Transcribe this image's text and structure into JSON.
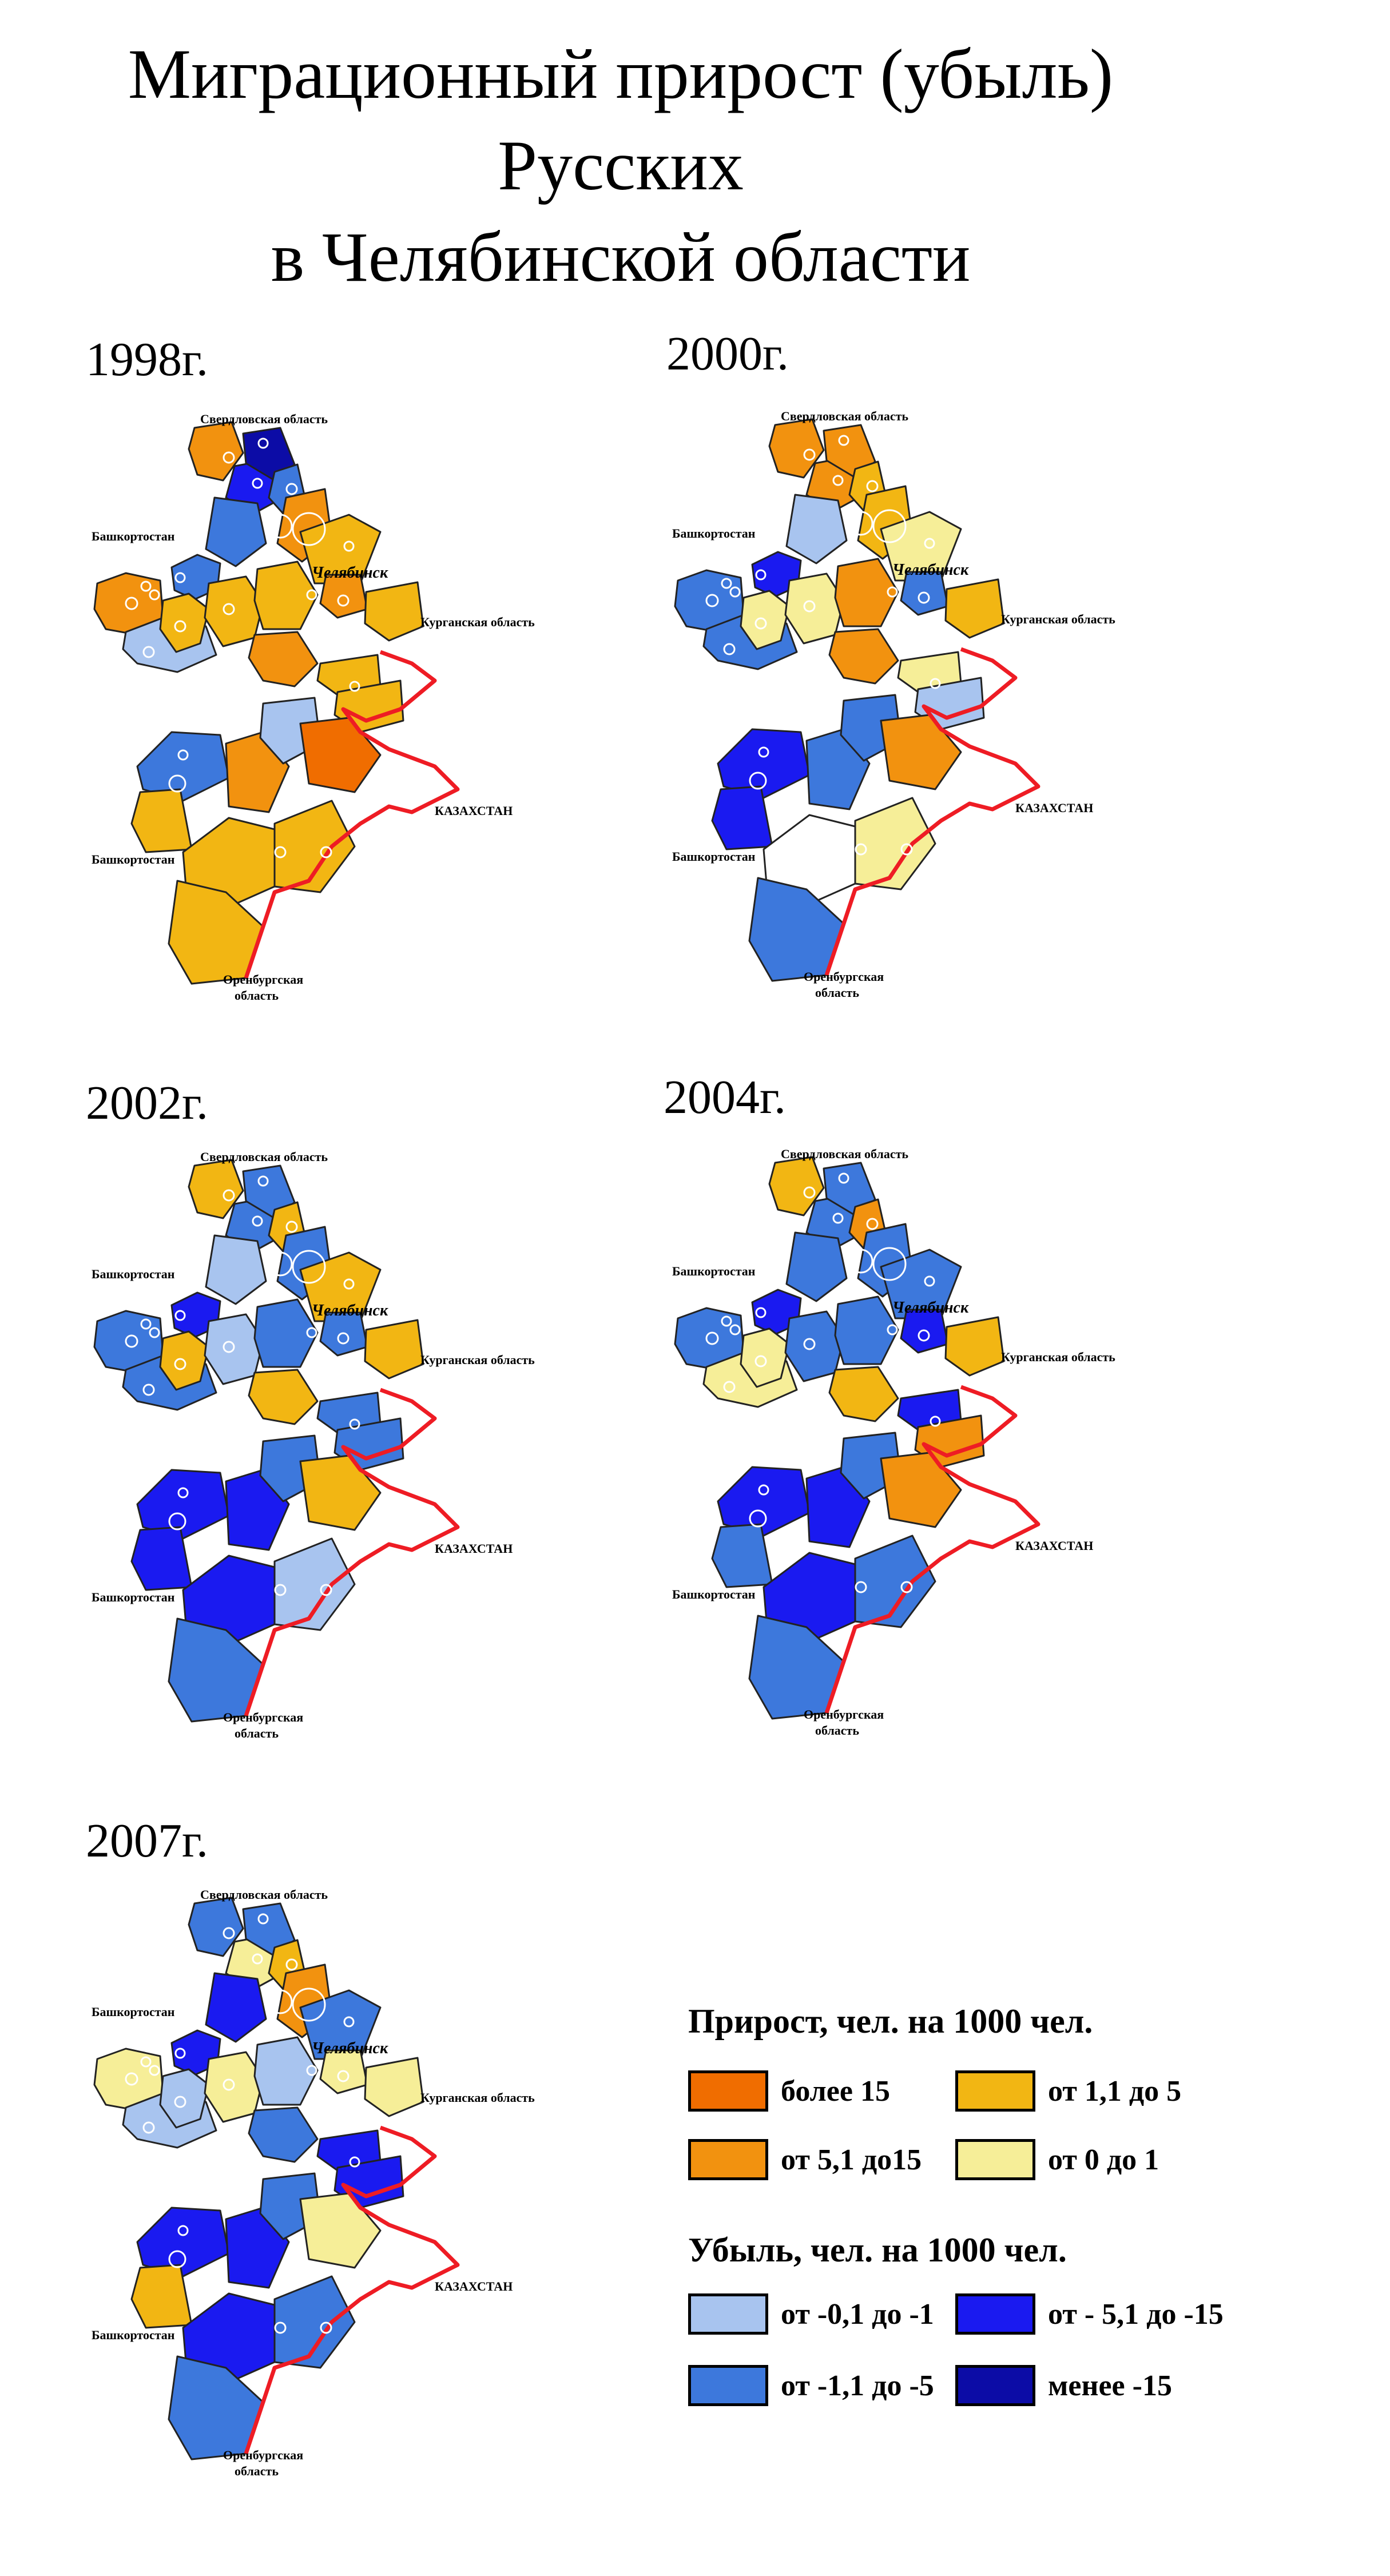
{
  "title": {
    "line1": "Миграционный прирост (убыль)",
    "line2": "Русских",
    "line3": "в Челябинской области"
  },
  "colors": {
    "more15": "#f06d00",
    "g5_15": "#f2920f",
    "g1_5": "#f2b613",
    "g0_1": "#f6ee98",
    "l0_1": "#a8c4ef",
    "l1_5": "#3d78dc",
    "l5_15": "#1a1af0",
    "less15": "#0c0ca6",
    "border_kz": "#ee1c24"
  },
  "labels": {
    "sverdlovsk": "Свердловская область",
    "bashkortostan": "Башкортостан",
    "kurgan": "Курганская область",
    "kazakhstan": "КАЗАХСТАН",
    "orenburg_1": "Оренбургская",
    "orenburg_2": "область",
    "chelyabinsk": "Челябинск"
  },
  "maps": [
    {
      "year": "1998г.",
      "regions": [
        "g5_15",
        "l0_1",
        "l1_5",
        "g1_5",
        "g1_5",
        "g1_5",
        "g5_15",
        "g5_15",
        "l5_15",
        "less15",
        "l1_5",
        "g5_15",
        "l1_5",
        "g1_5",
        "g5_15",
        "g1_5",
        "g1_5",
        "g1_5",
        "l1_5",
        "g5_15",
        "l0_1",
        "more15",
        "g1_5",
        "g1_5",
        "g1_5",
        "g1_5"
      ]
    },
    {
      "year": "2000г.",
      "regions": [
        "l1_5",
        "l1_5",
        "l5_15",
        "g0_1",
        "g0_1",
        "g5_15",
        "g5_15",
        "g5_15",
        "g5_15",
        "g5_15",
        "g1_5",
        "g1_5",
        "l0_1",
        "g0_1",
        "l1_5",
        "g1_5",
        "g0_1",
        "l0_1",
        "l5_15",
        "l1_5",
        "l1_5",
        "g5_15",
        "l5_15",
        "white",
        "g0_1",
        "l1_5"
      ]
    },
    {
      "year": "2002г.",
      "regions": [
        "l1_5",
        "l1_5",
        "l5_15",
        "g1_5",
        "l0_1",
        "l1_5",
        "g1_5",
        "g1_5",
        "l1_5",
        "l1_5",
        "g1_5",
        "l1_5",
        "l0_1",
        "g1_5",
        "l1_5",
        "g1_5",
        "l1_5",
        "l1_5",
        "l5_15",
        "l5_15",
        "l1_5",
        "g1_5",
        "l5_15",
        "l5_15",
        "l0_1",
        "l1_5"
      ]
    },
    {
      "year": "2004г.",
      "regions": [
        "l1_5",
        "g0_1",
        "l5_15",
        "g0_1",
        "l1_5",
        "l1_5",
        "g1_5",
        "g1_5",
        "l1_5",
        "l1_5",
        "g5_15",
        "l1_5",
        "l1_5",
        "l1_5",
        "l5_15",
        "g1_5",
        "l5_15",
        "g5_15",
        "l5_15",
        "l5_15",
        "l1_5",
        "g5_15",
        "l1_5",
        "l5_15",
        "l1_5",
        "l1_5"
      ]
    },
    {
      "year": "2007г.",
      "regions": [
        "g0_1",
        "l0_1",
        "l5_15",
        "l0_1",
        "g0_1",
        "l0_1",
        "l1_5",
        "l1_5",
        "g0_1",
        "l1_5",
        "g1_5",
        "g5_15",
        "l5_15",
        "l1_5",
        "g0_1",
        "g0_1",
        "l5_15",
        "l5_15",
        "l5_15",
        "l5_15",
        "l1_5",
        "g0_1",
        "g1_5",
        "l5_15",
        "l1_5",
        "l1_5"
      ]
    }
  ],
  "legend": {
    "growth_title": "Прирост, чел. на 1000 чел.",
    "loss_title": "Убыль, чел. на 1000 чел.",
    "items": {
      "more15": "более 15",
      "g1_5": "от 1,1 до 5",
      "g5_15": "от 5,1 до15",
      "g0_1": "от 0 до 1",
      "l0_1": "от -0,1 до -1",
      "l5_15": "от - 5,1 до -15",
      "l1_5": "от -1,1 до -5",
      "less15": "менее -15"
    }
  }
}
